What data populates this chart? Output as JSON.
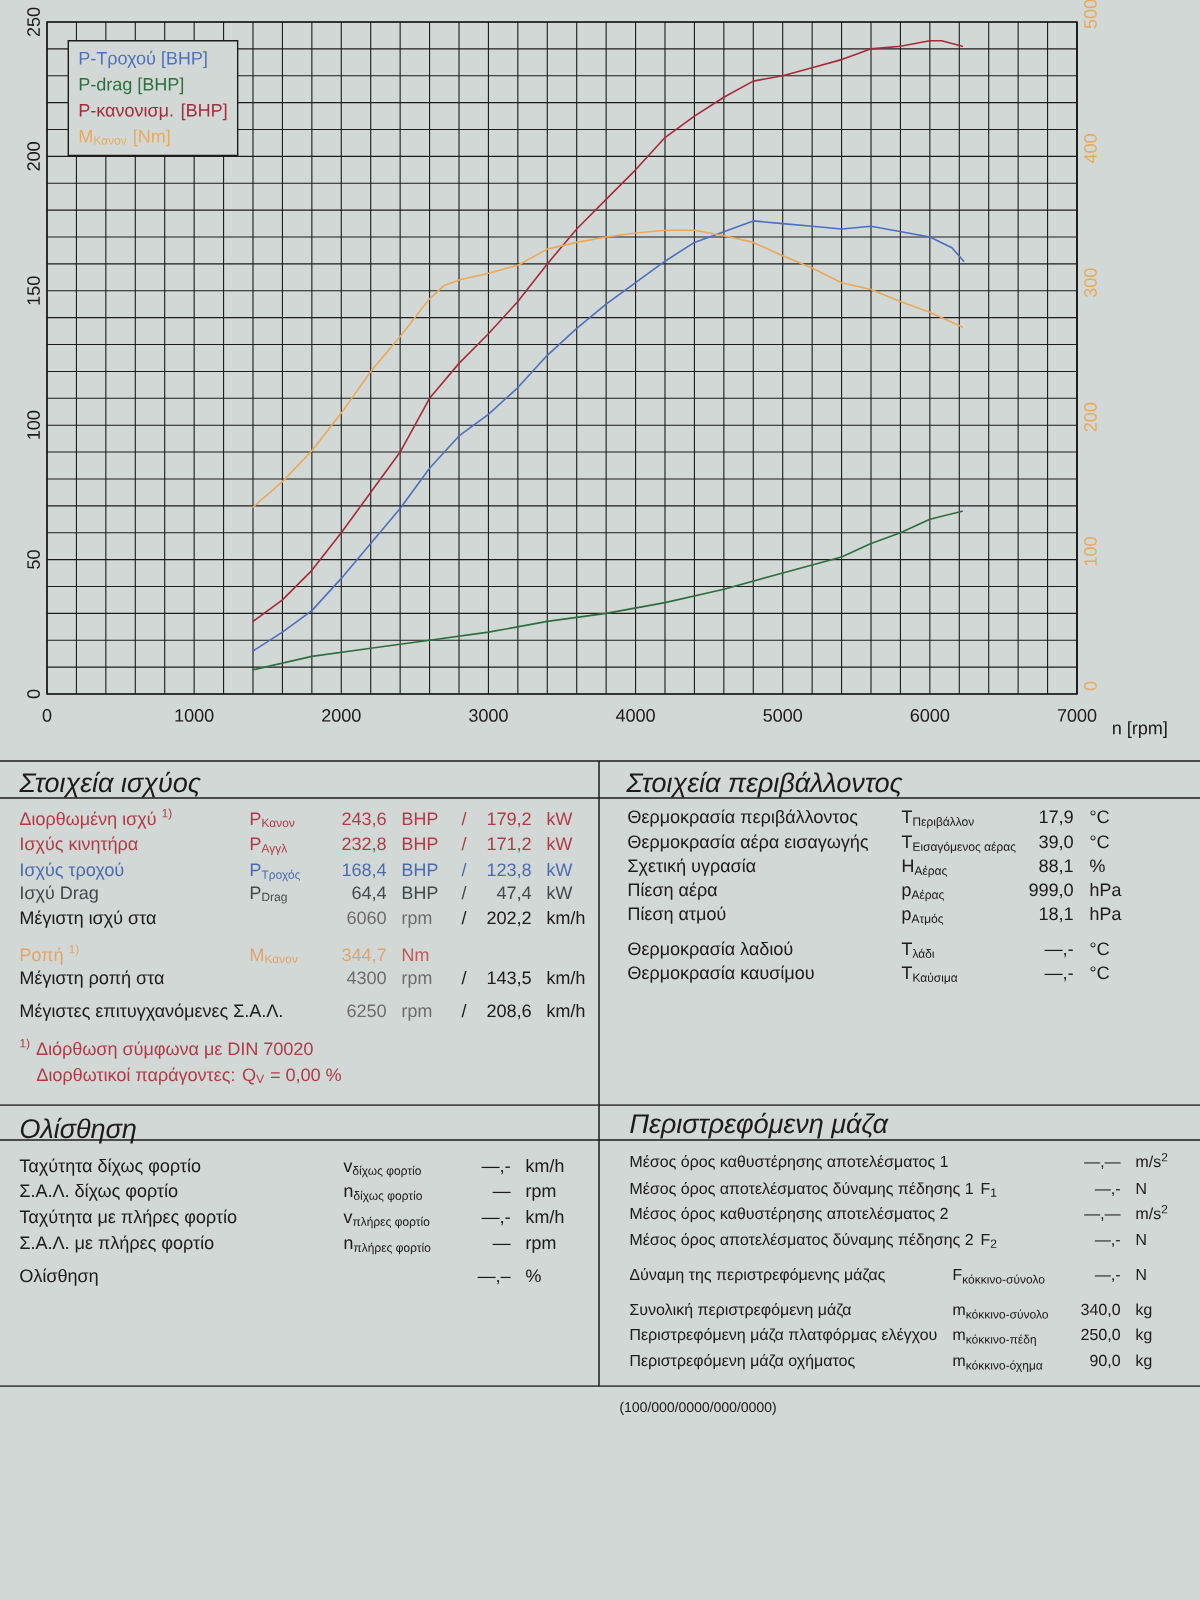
{
  "chart_data": {
    "type": "line",
    "xlabel": "n [rpm]",
    "xlim": [
      0,
      7000
    ],
    "xticks": [
      0,
      {
        "value": 200,
        "label": null
      },
      {
        "value": 400,
        "label": null
      },
      {
        "value": 600,
        "label": null
      },
      {
        "value": 800,
        "label": null
      },
      1000,
      {
        "value": 1200,
        "label": null
      },
      {
        "value": 1400,
        "label": null
      },
      {
        "value": 1600,
        "label": null
      },
      {
        "value": 1800,
        "label": null
      },
      2000,
      {
        "value": 2200,
        "label": null
      },
      {
        "value": 2400,
        "label": null
      },
      {
        "value": 2600,
        "label": null
      },
      {
        "value": 2800,
        "label": null
      },
      3000,
      {
        "value": 3200,
        "label": null
      },
      {
        "value": 3400,
        "label": null
      },
      {
        "value": 3600,
        "label": null
      },
      {
        "value": 3800,
        "label": null
      },
      4000,
      {
        "value": 4200,
        "label": null
      },
      {
        "value": 4400,
        "label": null
      },
      {
        "value": 4600,
        "label": null
      },
      {
        "value": 4800,
        "label": null
      },
      5000,
      {
        "value": 5200,
        "label": null
      },
      {
        "value": 5400,
        "label": null
      },
      {
        "value": 5600,
        "label": null
      },
      {
        "value": 5800,
        "label": null
      },
      6000,
      {
        "value": 6200,
        "label": null
      },
      {
        "value": 6400,
        "label": null
      },
      {
        "value": 6600,
        "label": null
      },
      {
        "value": 6800,
        "label": null
      },
      7000
    ],
    "ylim": [
      0,
      250
    ],
    "yticks": [
      0,
      {
        "value": 10,
        "label": null
      },
      {
        "value": 20,
        "label": null
      },
      {
        "value": 30,
        "label": null
      },
      {
        "value": 40,
        "label": null
      },
      50,
      {
        "value": 60,
        "label": null
      },
      {
        "value": 70,
        "label": null
      },
      {
        "value": 80,
        "label": null
      },
      {
        "value": 90,
        "label": null
      },
      100,
      {
        "value": 110,
        "label": null
      },
      {
        "value": 120,
        "label": null
      },
      {
        "value": 130,
        "label": null
      },
      {
        "value": 140,
        "label": null
      },
      150,
      {
        "value": 160,
        "label": null
      },
      {
        "value": 170,
        "label": null
      },
      {
        "value": 180,
        "label": null
      },
      {
        "value": 190,
        "label": null
      },
      200,
      {
        "value": 210,
        "label": null
      },
      {
        "value": 220,
        "label": null
      },
      {
        "value": 230,
        "label": null
      },
      {
        "value": 240,
        "label": null
      },
      250
    ],
    "y2lim": [
      0,
      500
    ],
    "y2ticks": [
      0,
      100,
      200,
      300,
      400,
      500
    ],
    "grid": true,
    "legend": "top left",
    "marker": "none",
    "series": [
      {
        "name": "P-Τροχού [BHP]",
        "color": "#4d6fbf",
        "x": [
          1400,
          1600,
          1800,
          2000,
          2200,
          2400,
          2600,
          2800,
          3000,
          3200,
          3400,
          3600,
          3800,
          4000,
          4200,
          4400,
          4600,
          4800,
          5000,
          5200,
          5400,
          5600,
          5800,
          6000,
          6150,
          6230
        ],
        "values": [
          16,
          23,
          31,
          43,
          56,
          69,
          84,
          96,
          104,
          114,
          126,
          136,
          145,
          153,
          161,
          168,
          172,
          176,
          175,
          174,
          173,
          174,
          172,
          170,
          166,
          161
        ]
      },
      {
        "name": "P-drag [BHP]",
        "color": "#2e6e3e",
        "x": [
          1400,
          1800,
          2200,
          2600,
          3000,
          3400,
          3800,
          4200,
          4600,
          5000,
          5200,
          5400,
          5600,
          5800,
          6000,
          6220
        ],
        "values": [
          9,
          14,
          17,
          20,
          23,
          27,
          30,
          34,
          39,
          45,
          48,
          51,
          56,
          60,
          65,
          68
        ]
      },
      {
        "name": "P-κανονισμ. [BHP]",
        "color": "#a52a3c",
        "x": [
          1400,
          1600,
          1800,
          2000,
          2200,
          2400,
          2600,
          2800,
          3000,
          3200,
          3400,
          3600,
          3800,
          4000,
          4200,
          4400,
          4600,
          4800,
          5000,
          5200,
          5400,
          5500,
          5600,
          5800,
          6000,
          6080,
          6220
        ],
        "values": [
          27,
          35,
          46,
          60,
          75,
          90,
          110,
          123,
          134,
          146,
          160,
          173,
          184,
          195,
          207,
          215,
          222,
          228,
          230,
          233,
          236,
          238,
          240,
          241,
          243,
          243,
          241
        ]
      },
      {
        "name": "M$_{Κανον}$ [Nm]",
        "color": "#eaa95a",
        "axis": "y2",
        "x": [
          1400,
          1600,
          1800,
          2000,
          2200,
          2400,
          2600,
          2700,
          2800,
          3000,
          3200,
          3400,
          3600,
          3800,
          4000,
          4200,
          4400,
          4600,
          4800,
          5000,
          5200,
          5400,
          5600,
          5800,
          6000,
          6220
        ],
        "values": [
          139,
          158,
          181,
          209,
          240,
          266,
          294,
          304,
          308,
          313,
          319,
          331,
          336,
          340,
          343,
          345,
          345,
          341,
          336,
          326,
          317,
          306,
          301,
          292,
          284,
          273
        ]
      }
    ],
    "annotations": [
      "Στοιχεία ισχύος",
      "Διορθωμένη ισχύ $^{1)}$",
      "P$_{Κανον}$",
      "243,6",
      "BHP",
      "/",
      "179,2",
      "kW",
      "Ισχύς κινητήρα",
      "P$_{Αγγλ}$",
      "232,8",
      "BHP",
      "/",
      "171,2",
      "kW",
      "Ισχύς τροχού",
      "P$_{Τροχός}$",
      "168,4",
      "BHP",
      "/",
      "123,8",
      "kW",
      "Ισχύ Drag",
      "P$_{Drag}$",
      "64,4",
      "BHP",
      "/",
      "47,4",
      "kW",
      "Μέγιστη ισχύ στα",
      "6060",
      "rpm",
      "/",
      "202,2",
      "km/h",
      "Ροπή $^{1)}$",
      "M$_{Κανον}$",
      "344,7",
      "Nm",
      "Μέγιστη ροπή στα",
      "4300",
      "rpm",
      "/",
      "143,5",
      "km/h",
      "Μέγιστες επιτυγχανόμενες Σ.Α.Λ.",
      "6250",
      "rpm",
      "/",
      "208,6",
      "km/h",
      "$^{1)}$ Διόρθωση σύμφωνα με DIN 70020",
      "Διορθωτικοί παράγοντες: Q$_{V}$ = 0,00 %",
      "Στοιχεία περιβάλλοντος",
      "Θερμοκρασία περιβάλλοντος",
      "T$_{Περιβάλλον}$",
      "17,9",
      "°C",
      "Θερμοκρασία αέρα εισαγωγής",
      "T$_{Εισαγόμενος αέρας}$",
      "39,0",
      "°C",
      "Σχετική υγρασία",
      "H$_{Αέρας}$",
      "88,1",
      "%",
      "Πίεση αέρα",
      "p$_{Αέρας}$",
      "999,0",
      "hPa",
      "Πίεση ατμού",
      "p$_{Ατμός}$",
      "18,1",
      "hPa",
      "Θερμοκρασία λαδιού",
      "T$_{λάδι}$",
      "—,-",
      "°C",
      "Θερμοκρασία καυσίμου",
      "T$_{Καύσιμα}$",
      "—,-",
      "°C",
      "Ολίσθηση",
      "Ταχύτητα δίχως φορτίο",
      "v$_{δίχως φορτίο}$",
      "—,-",
      "km/h",
      "Σ.Α.Λ. δίχως φορτίο",
      "n$_{δίχως φορτίο}$",
      "—",
      "rpm",
      "Ταχύτητα με πλήρες φορτίο",
      "v$_{πλήρες φορτίο}$",
      "—,-",
      "km/h",
      "Σ.Α.Λ. με πλήρες φορτίο",
      "n$_{πλήρες φορτίο}$",
      "—",
      "rpm",
      "Ολίσθηση",
      "—,–",
      "%",
      "Περιστρεφόμενη μάζα",
      "Μέσος όρος καθυστέρησης αποτελέσματος 1",
      "—,—",
      "m/s$^{2}$",
      "Μέσος όρος αποτελέσματος δύναμης πέδησης 1",
      "F$_{1}$",
      "—,-",
      "N",
      "Μέσος όρος καθυστέρησης αποτελέσματος 2",
      "—,—",
      "m/s$^{2}$",
      "Μέσος όρος αποτελέσματος δύναμης πέδησης 2",
      "F$_{2}$",
      "—,-",
      "N",
      "Δύναμη της περιστρεφόμενης μάζας",
      "F$_{κόκκινο-σύνολο}$",
      "—,-",
      "N",
      "Συνολική περιστρεφόμενη μάζα",
      "m$_{κόκκινο-σύνολο}$",
      "340,0",
      "kg",
      "Περιστρεφόμενη μάζα πλατφόρμας ελέγχου",
      "m$_{κόκκινο-πέδη}$",
      "250,0",
      "kg",
      "Περιστρεφόμενη μάζα οχήματος",
      "m$_{κόκκινο-όχημα}$",
      "90,0",
      "kg",
      "(100/000/0000/000/0000)"
    ]
  }
}
